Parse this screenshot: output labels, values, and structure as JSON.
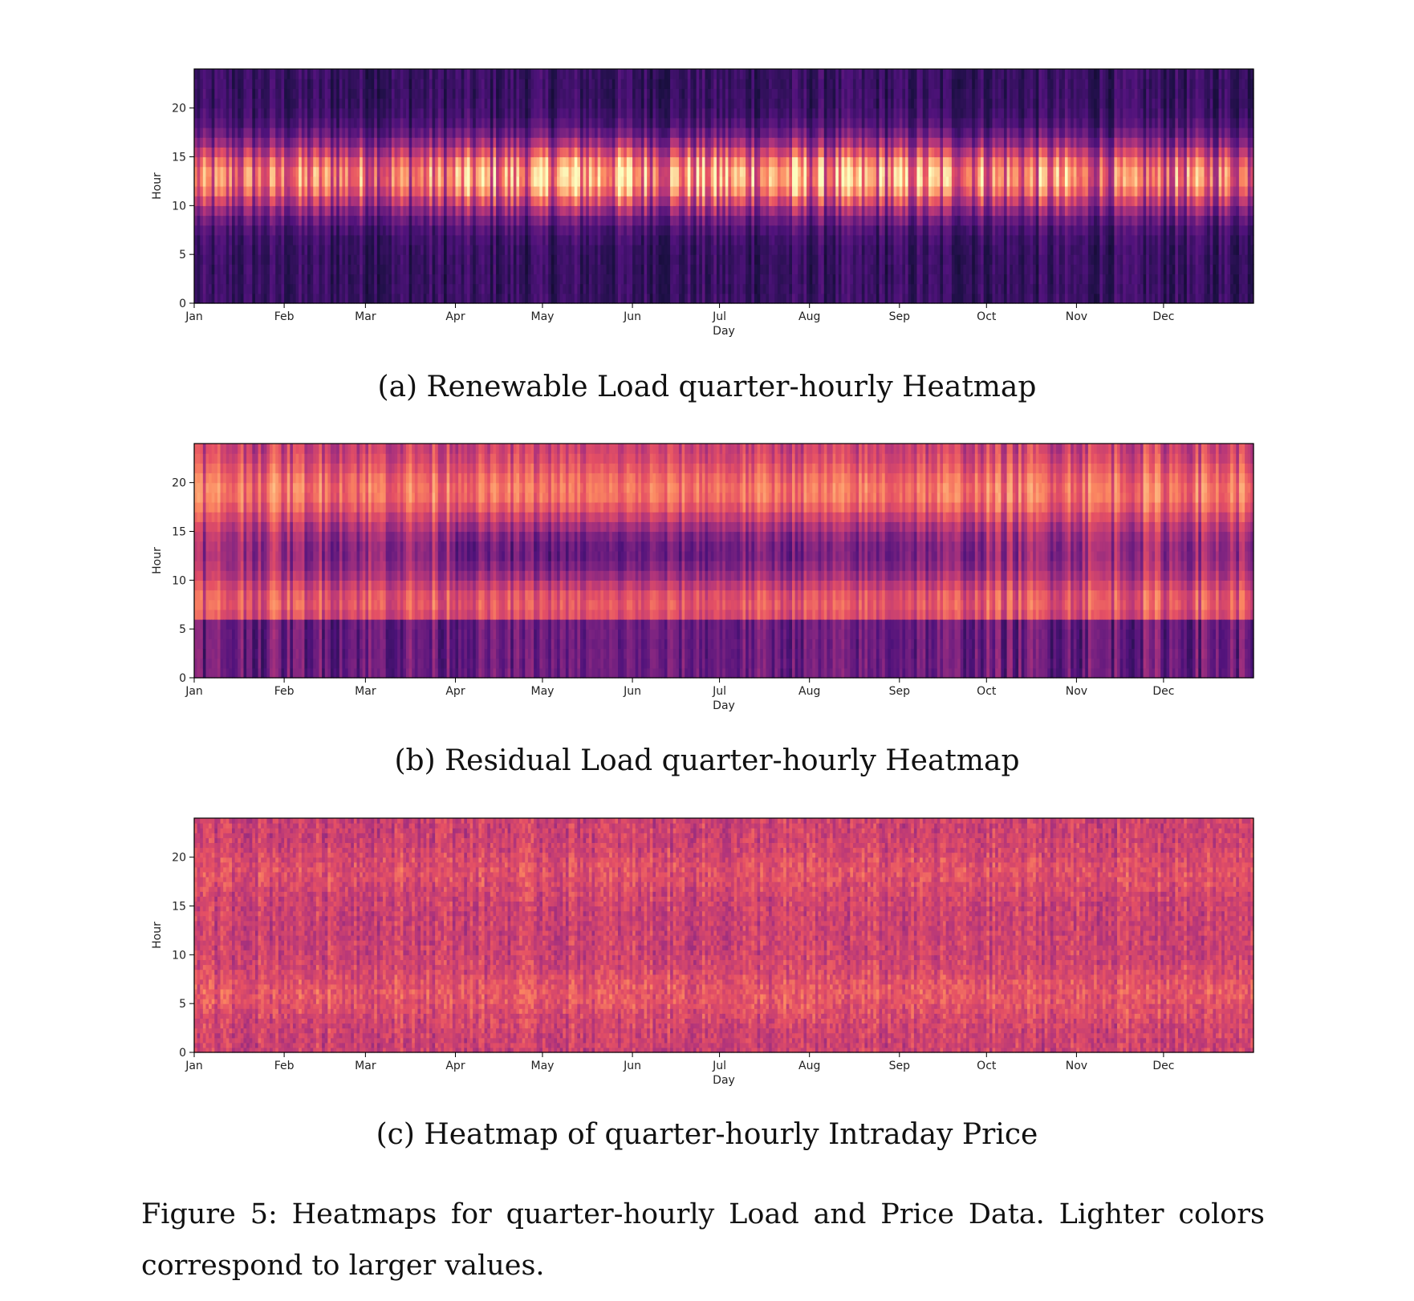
{
  "colors": {
    "colormap": "magma",
    "frame": "#000000",
    "background": "#ffffff"
  },
  "chart_data": [
    {
      "type": "heatmap",
      "caption": "(a) Renewable Load quarter-hourly Heatmap",
      "xlabel": "Day",
      "ylabel": "Hour",
      "xtick_labels": [
        "Jan",
        "Feb",
        "Mar",
        "Apr",
        "May",
        "Jun",
        "Jul",
        "Aug",
        "Sep",
        "Oct",
        "Nov",
        "Dec"
      ],
      "ytick_labels": [
        "0",
        "5",
        "10",
        "15",
        "20"
      ],
      "yticks": [
        0,
        5,
        10,
        15,
        20
      ],
      "ylim": [
        0,
        24
      ],
      "xlim_days": [
        1,
        365
      ],
      "grid": false,
      "pattern": "daytime peak around hours 9-17 (brightest in May-Jul), dark nights, strong day-to-day variation",
      "peak_hours": [
        9,
        17
      ],
      "monthly_relative_level": [
        0.45,
        0.55,
        0.5,
        0.7,
        0.9,
        0.75,
        0.8,
        0.7,
        0.7,
        0.6,
        0.4,
        0.5
      ]
    },
    {
      "type": "heatmap",
      "caption": "(b) Residual Load quarter-hourly Heatmap",
      "xlabel": "Day",
      "ylabel": "Hour",
      "xtick_labels": [
        "Jan",
        "Feb",
        "Mar",
        "Apr",
        "May",
        "Jun",
        "Jul",
        "Aug",
        "Sep",
        "Oct",
        "Nov",
        "Dec"
      ],
      "ytick_labels": [
        "0",
        "5",
        "10",
        "15",
        "20"
      ],
      "yticks": [
        0,
        5,
        10,
        15,
        20
      ],
      "ylim": [
        0,
        24
      ],
      "xlim_days": [
        1,
        365
      ],
      "grid": false,
      "pattern": "high from hour 6 to 24 with evening peak near hours 17-21, low at night, lower in Apr-Jun daytime",
      "monthly_relative_level": [
        0.8,
        0.7,
        0.75,
        0.55,
        0.5,
        0.55,
        0.6,
        0.6,
        0.65,
        0.75,
        0.8,
        0.75
      ]
    },
    {
      "type": "heatmap",
      "caption": "(c) Heatmap of quarter-hourly Intraday Price",
      "xlabel": "Day",
      "ylabel": "Hour",
      "xtick_labels": [
        "Jan",
        "Feb",
        "Mar",
        "Apr",
        "May",
        "Jun",
        "Jul",
        "Aug",
        "Sep",
        "Oct",
        "Nov",
        "Dec"
      ],
      "ytick_labels": [
        "0",
        "5",
        "10",
        "15",
        "20"
      ],
      "yticks": [
        0,
        5,
        10,
        15,
        20
      ],
      "ylim": [
        0,
        24
      ],
      "xlim_days": [
        1,
        365
      ],
      "grid": false,
      "pattern": "mostly mid-range values with fine noisy texture, slightly higher around hours 4-8 and 17-20",
      "monthly_relative_level": [
        0.55,
        0.6,
        0.62,
        0.6,
        0.58,
        0.6,
        0.62,
        0.6,
        0.58,
        0.6,
        0.62,
        0.6
      ]
    }
  ],
  "figure_caption": "Figure 5: Heatmaps for quarter-hourly Load and Price Data. Lighter colors correspond to larger values."
}
